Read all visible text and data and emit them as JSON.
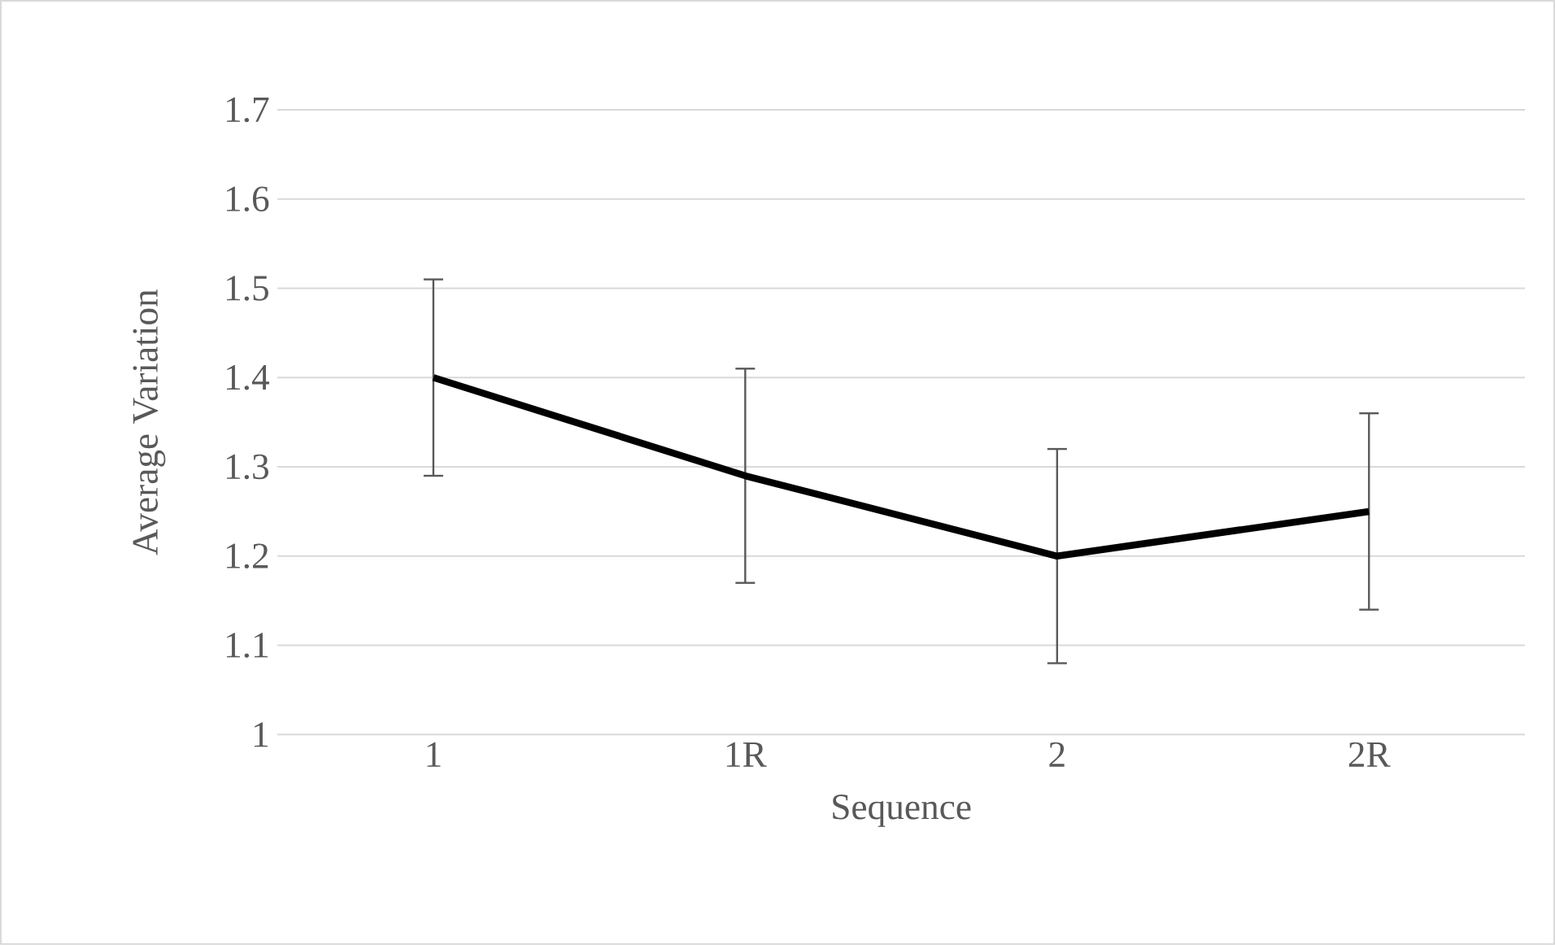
{
  "chart_data": {
    "type": "line",
    "xlabel": "Sequence",
    "ylabel": "Average Variation",
    "categories": [
      "1",
      "1R",
      "2",
      "2R"
    ],
    "series": [
      {
        "color": "#000000",
        "values": [
          1.4,
          1.29,
          1.2,
          1.25
        ],
        "errors": [
          0.11,
          0.12,
          0.12,
          0.11
        ]
      }
    ],
    "ylim": [
      1,
      1.7
    ],
    "yticks": [
      1,
      1.1,
      1.2,
      1.3,
      1.4,
      1.5,
      1.6,
      1.7
    ],
    "grid": "y",
    "marker": "none",
    "line_style": "solid"
  }
}
